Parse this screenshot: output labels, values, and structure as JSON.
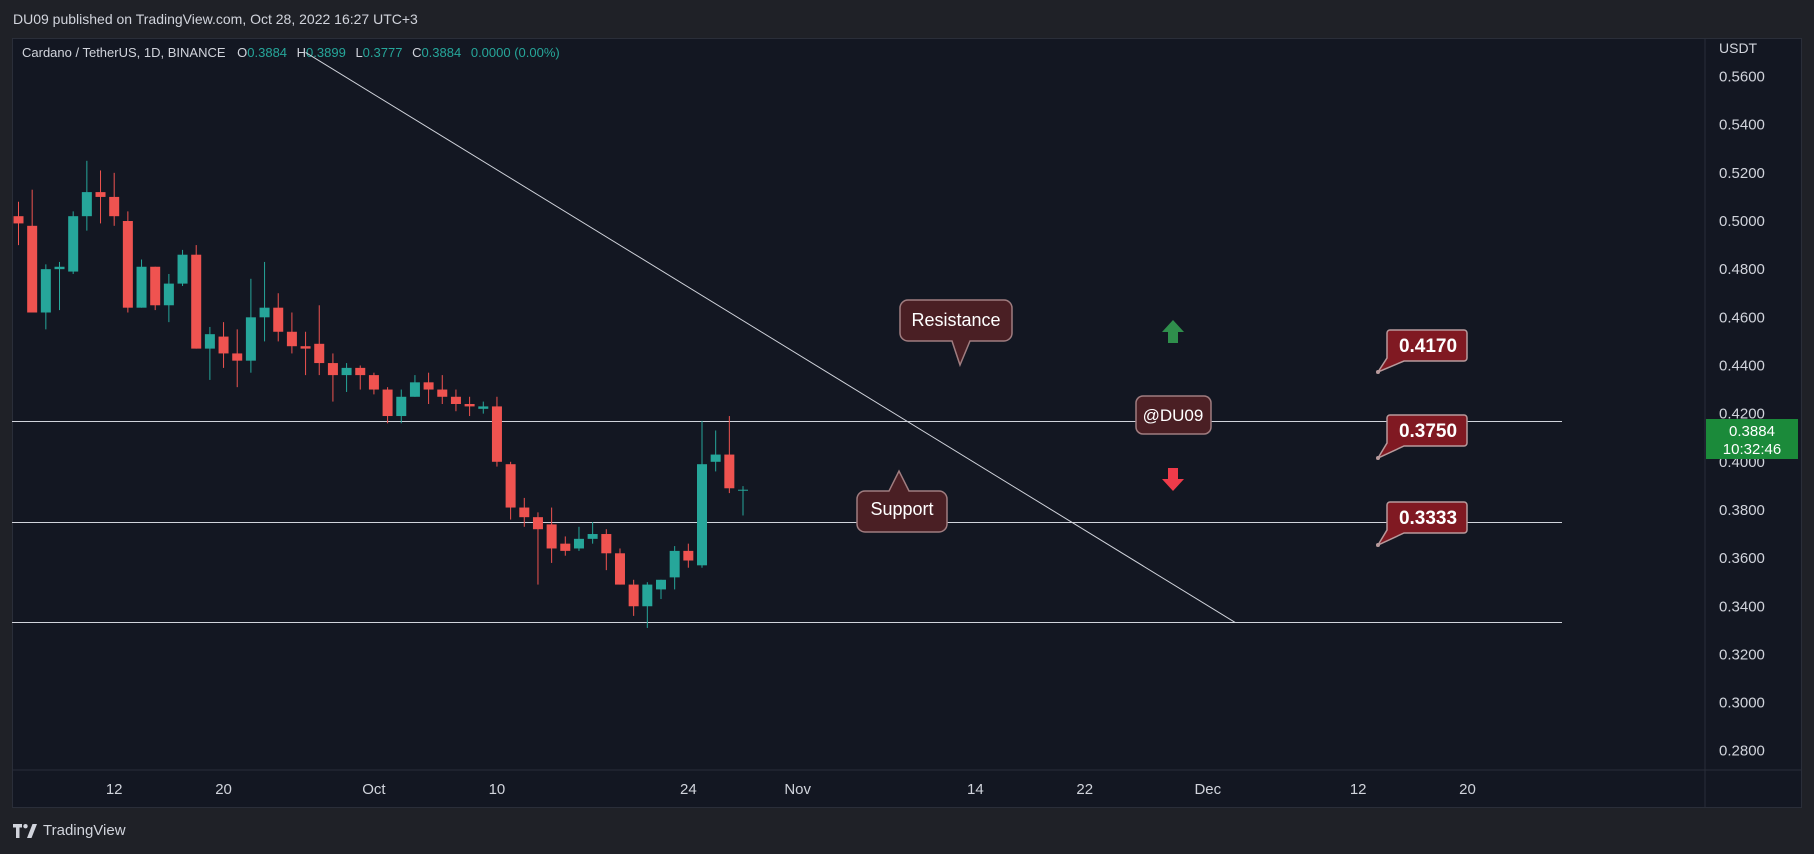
{
  "header": {
    "published": "DU09 published on TradingView.com, Oct 28, 2022 16:27 UTC+3"
  },
  "legend": {
    "symbol": "Cardano / TetherUS, 1D, BINANCE",
    "o_label": "O",
    "o": "0.3884",
    "h_label": "H",
    "h": "0.3899",
    "l_label": "L",
    "l": "0.3777",
    "c_label": "C",
    "c": "0.3884",
    "change": "0.0000 (0.00%)"
  },
  "price_axis": {
    "currency": "USDT",
    "ticks": [
      "0.5600",
      "0.5400",
      "0.5200",
      "0.5000",
      "0.4800",
      "0.4600",
      "0.4400",
      "0.4200",
      "0.4000",
      "0.3800",
      "0.3600",
      "0.3400",
      "0.3200",
      "0.3000",
      "0.2800"
    ],
    "last_price": "0.3884",
    "countdown": "10:32:46"
  },
  "time_axis": {
    "ticks": [
      "12",
      "20",
      "Oct",
      "10",
      "24",
      "Nov",
      "14",
      "22",
      "Dec",
      "12",
      "20"
    ]
  },
  "annotations": {
    "resistance_label": "Resistance",
    "support_label": "Support",
    "author_tag": "@DU09",
    "level_1": "0.4170",
    "level_2": "0.3750",
    "level_3": "0.3333"
  },
  "footer": {
    "brand": "TradingView"
  },
  "colors": {
    "bull": "#26a69a",
    "bear": "#ef5350",
    "background": "#131722",
    "text": "#d1d4dc",
    "legend_values": "#26a69a",
    "last_price_bg": "#1b8a3a",
    "callout_bg": "#4a1f24",
    "callout_border": "#a07d80",
    "level_label_bg": "#801922",
    "arrow_up": "#2f8f4c",
    "arrow_down": "#ef3b4a"
  },
  "chart_data": {
    "type": "candlestick",
    "symbol": "Cardano / TetherUS",
    "interval": "1D",
    "exchange": "BINANCE",
    "y_unit": "USDT",
    "ylim": [
      0.272,
      0.576
    ],
    "x_ticks": [
      "12",
      "20",
      "Oct",
      "10",
      "24",
      "Nov",
      "14",
      "22",
      "Dec",
      "12",
      "20"
    ],
    "candles": [
      {
        "date": "2022-09-05",
        "o": 0.502,
        "h": 0.508,
        "l": 0.49,
        "c": 0.499
      },
      {
        "date": "2022-09-06",
        "o": 0.498,
        "h": 0.513,
        "l": 0.462,
        "c": 0.462
      },
      {
        "date": "2022-09-07",
        "o": 0.462,
        "h": 0.482,
        "l": 0.455,
        "c": 0.48
      },
      {
        "date": "2022-09-08",
        "o": 0.48,
        "h": 0.483,
        "l": 0.463,
        "c": 0.481
      },
      {
        "date": "2022-09-09",
        "o": 0.479,
        "h": 0.504,
        "l": 0.478,
        "c": 0.502
      },
      {
        "date": "2022-09-10",
        "o": 0.502,
        "h": 0.525,
        "l": 0.496,
        "c": 0.512
      },
      {
        "date": "2022-09-11",
        "o": 0.512,
        "h": 0.521,
        "l": 0.499,
        "c": 0.51
      },
      {
        "date": "2022-09-12",
        "o": 0.51,
        "h": 0.52,
        "l": 0.498,
        "c": 0.502
      },
      {
        "date": "2022-09-13",
        "o": 0.5,
        "h": 0.504,
        "l": 0.462,
        "c": 0.464
      },
      {
        "date": "2022-09-14",
        "o": 0.464,
        "h": 0.484,
        "l": 0.464,
        "c": 0.481
      },
      {
        "date": "2022-09-15",
        "o": 0.481,
        "h": 0.481,
        "l": 0.463,
        "c": 0.465
      },
      {
        "date": "2022-09-16",
        "o": 0.465,
        "h": 0.478,
        "l": 0.458,
        "c": 0.474
      },
      {
        "date": "2022-09-17",
        "o": 0.474,
        "h": 0.488,
        "l": 0.473,
        "c": 0.486
      },
      {
        "date": "2022-09-18",
        "o": 0.486,
        "h": 0.49,
        "l": 0.447,
        "c": 0.447
      },
      {
        "date": "2022-09-19",
        "o": 0.447,
        "h": 0.456,
        "l": 0.434,
        "c": 0.453
      },
      {
        "date": "2022-09-20",
        "o": 0.452,
        "h": 0.458,
        "l": 0.439,
        "c": 0.445
      },
      {
        "date": "2022-09-21",
        "o": 0.445,
        "h": 0.455,
        "l": 0.431,
        "c": 0.442
      },
      {
        "date": "2022-09-22",
        "o": 0.442,
        "h": 0.476,
        "l": 0.437,
        "c": 0.46
      },
      {
        "date": "2022-09-23",
        "o": 0.46,
        "h": 0.483,
        "l": 0.45,
        "c": 0.464
      },
      {
        "date": "2022-09-24",
        "o": 0.464,
        "h": 0.47,
        "l": 0.45,
        "c": 0.454
      },
      {
        "date": "2022-09-25",
        "o": 0.454,
        "h": 0.462,
        "l": 0.445,
        "c": 0.448
      },
      {
        "date": "2022-09-26",
        "o": 0.448,
        "h": 0.454,
        "l": 0.436,
        "c": 0.447
      },
      {
        "date": "2022-09-27",
        "o": 0.449,
        "h": 0.465,
        "l": 0.436,
        "c": 0.441
      },
      {
        "date": "2022-09-28",
        "o": 0.441,
        "h": 0.445,
        "l": 0.425,
        "c": 0.436
      },
      {
        "date": "2022-09-29",
        "o": 0.436,
        "h": 0.441,
        "l": 0.429,
        "c": 0.439
      },
      {
        "date": "2022-09-30",
        "o": 0.439,
        "h": 0.44,
        "l": 0.43,
        "c": 0.436
      },
      {
        "date": "2022-10-01",
        "o": 0.436,
        "h": 0.437,
        "l": 0.428,
        "c": 0.43
      },
      {
        "date": "2022-10-02",
        "o": 0.43,
        "h": 0.431,
        "l": 0.416,
        "c": 0.419
      },
      {
        "date": "2022-10-03",
        "o": 0.419,
        "h": 0.43,
        "l": 0.416,
        "c": 0.427
      },
      {
        "date": "2022-10-04",
        "o": 0.427,
        "h": 0.436,
        "l": 0.427,
        "c": 0.433
      },
      {
        "date": "2022-10-05",
        "o": 0.433,
        "h": 0.437,
        "l": 0.424,
        "c": 0.43
      },
      {
        "date": "2022-10-06",
        "o": 0.43,
        "h": 0.436,
        "l": 0.424,
        "c": 0.427
      },
      {
        "date": "2022-10-07",
        "o": 0.427,
        "h": 0.43,
        "l": 0.421,
        "c": 0.424
      },
      {
        "date": "2022-10-08",
        "o": 0.424,
        "h": 0.427,
        "l": 0.419,
        "c": 0.423
      },
      {
        "date": "2022-10-09",
        "o": 0.422,
        "h": 0.425,
        "l": 0.42,
        "c": 0.423
      },
      {
        "date": "2022-10-10",
        "o": 0.423,
        "h": 0.427,
        "l": 0.398,
        "c": 0.4
      },
      {
        "date": "2022-10-11",
        "o": 0.399,
        "h": 0.4,
        "l": 0.376,
        "c": 0.381
      },
      {
        "date": "2022-10-12",
        "o": 0.381,
        "h": 0.385,
        "l": 0.373,
        "c": 0.377
      },
      {
        "date": "2022-10-13",
        "o": 0.377,
        "h": 0.379,
        "l": 0.349,
        "c": 0.372
      },
      {
        "date": "2022-10-14",
        "o": 0.374,
        "h": 0.381,
        "l": 0.358,
        "c": 0.364
      },
      {
        "date": "2022-10-15",
        "o": 0.366,
        "h": 0.369,
        "l": 0.361,
        "c": 0.363
      },
      {
        "date": "2022-10-16",
        "o": 0.364,
        "h": 0.373,
        "l": 0.363,
        "c": 0.368
      },
      {
        "date": "2022-10-17",
        "o": 0.368,
        "h": 0.375,
        "l": 0.366,
        "c": 0.37
      },
      {
        "date": "2022-10-18",
        "o": 0.37,
        "h": 0.372,
        "l": 0.355,
        "c": 0.362
      },
      {
        "date": "2022-10-19",
        "o": 0.362,
        "h": 0.364,
        "l": 0.349,
        "c": 0.349
      },
      {
        "date": "2022-10-20",
        "o": 0.349,
        "h": 0.351,
        "l": 0.336,
        "c": 0.34
      },
      {
        "date": "2022-10-21",
        "o": 0.34,
        "h": 0.35,
        "l": 0.331,
        "c": 0.349
      },
      {
        "date": "2022-10-22",
        "o": 0.347,
        "h": 0.351,
        "l": 0.343,
        "c": 0.351
      },
      {
        "date": "2022-10-23",
        "o": 0.352,
        "h": 0.365,
        "l": 0.347,
        "c": 0.363
      },
      {
        "date": "2022-10-24",
        "o": 0.363,
        "h": 0.366,
        "l": 0.356,
        "c": 0.359
      },
      {
        "date": "2022-10-25",
        "o": 0.357,
        "h": 0.417,
        "l": 0.356,
        "c": 0.399
      },
      {
        "date": "2022-10-26",
        "o": 0.4,
        "h": 0.413,
        "l": 0.396,
        "c": 0.403
      },
      {
        "date": "2022-10-27",
        "o": 0.403,
        "h": 0.419,
        "l": 0.387,
        "c": 0.389
      },
      {
        "date": "2022-10-28",
        "o": 0.3884,
        "h": 0.3899,
        "l": 0.3777,
        "c": 0.3884
      }
    ],
    "horizontal_levels": [
      0.417,
      0.375,
      0.3333
    ],
    "trendline": {
      "from": {
        "date": "2022-09-26",
        "price": 0.57
      },
      "to": {
        "date": "2022-12-03",
        "price": 0.3333
      }
    },
    "grid": false,
    "legend": "top-left"
  }
}
